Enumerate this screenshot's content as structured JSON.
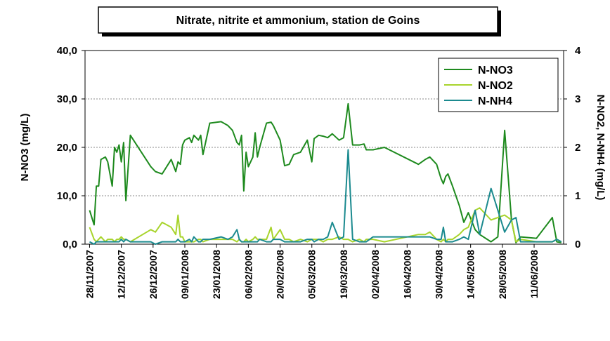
{
  "chart_data": {
    "type": "line",
    "title": "Nitrate, nitrite et ammonium, station de Goins",
    "ylabel": "N-NO3 (mg/L)",
    "y2label": "N-NO2, N-NH4 (mg/L)",
    "x": [
      "2007-11-28",
      "2007-11-30",
      "2007-12-01",
      "2007-12-02",
      "2007-12-03",
      "2007-12-05",
      "2007-12-06",
      "2007-12-08",
      "2007-12-09",
      "2007-12-10",
      "2007-12-11",
      "2007-12-12",
      "2007-12-13",
      "2007-12-14",
      "2007-12-16",
      "2007-12-25",
      "2007-12-27",
      "2007-12-30",
      "2008-01-03",
      "2008-01-05",
      "2008-01-06",
      "2008-01-07",
      "2008-01-08",
      "2008-01-09",
      "2008-01-11",
      "2008-01-12",
      "2008-01-13",
      "2008-01-15",
      "2008-01-16",
      "2008-01-17",
      "2008-01-20",
      "2008-01-25",
      "2008-01-28",
      "2008-01-30",
      "2008-02-01",
      "2008-02-02",
      "2008-02-03",
      "2008-02-04",
      "2008-02-05",
      "2008-02-06",
      "2008-02-08",
      "2008-02-09",
      "2008-02-10",
      "2008-02-11",
      "2008-02-14",
      "2008-02-16",
      "2008-02-17",
      "2008-02-20",
      "2008-02-22",
      "2008-02-24",
      "2008-02-26",
      "2008-02-29",
      "2008-03-03",
      "2008-03-05",
      "2008-03-06",
      "2008-03-08",
      "2008-03-10",
      "2008-03-12",
      "2008-03-14",
      "2008-03-17",
      "2008-03-19",
      "2008-03-21",
      "2008-03-23",
      "2008-03-26",
      "2008-03-28",
      "2008-03-29",
      "2008-04-01",
      "2008-04-06",
      "2008-04-21",
      "2008-04-24",
      "2008-04-26",
      "2008-04-29",
      "2008-05-01",
      "2008-05-02",
      "2008-05-03",
      "2008-05-04",
      "2008-05-06",
      "2008-05-09",
      "2008-05-11",
      "2008-05-13",
      "2008-05-16",
      "2008-05-18",
      "2008-05-23",
      "2008-05-26",
      "2008-05-29",
      "2008-06-01",
      "2008-06-03",
      "2008-06-05",
      "2008-06-12",
      "2008-06-19",
      "2008-06-21",
      "2008-06-23"
    ],
    "series": [
      {
        "name": "N-NO3",
        "color": "#1e8a1e",
        "values": [
          7,
          4,
          12,
          12,
          17.5,
          18,
          17,
          12,
          20,
          19,
          20.5,
          17,
          21,
          9,
          22.5,
          16,
          15,
          14.5,
          17.5,
          15,
          17,
          16.5,
          20.5,
          21.5,
          22,
          21,
          22.5,
          21.5,
          22.5,
          18.5,
          25,
          25.3,
          24.5,
          23.5,
          21,
          20.5,
          22.5,
          11,
          19,
          16,
          18,
          23,
          18,
          20,
          25,
          25.2,
          24.5,
          21.5,
          16.2,
          16.5,
          18.5,
          19,
          21.5,
          17,
          21.8,
          22.5,
          22.3,
          22,
          22.8,
          21.5,
          22,
          29,
          20.5,
          20.5,
          20.7,
          19.5,
          19.5,
          20,
          16.5,
          17.5,
          18,
          16.5,
          13.5,
          12.5,
          14,
          14.5,
          12,
          8,
          4.5,
          6.5,
          3,
          2,
          0.5,
          1.5,
          23.5,
          5,
          0.3,
          1.5,
          1.2,
          5.5,
          0.5,
          0.3
        ]
      },
      {
        "name": "N-NO2",
        "color": "#a8d42c",
        "axis": "y2",
        "values": [
          0.35,
          0.1,
          0.05,
          0.1,
          0.15,
          0.05,
          0.1,
          0.1,
          0.05,
          0.1,
          0.1,
          0.15,
          0.1,
          0.1,
          0.05,
          0.3,
          0.25,
          0.45,
          0.35,
          0.2,
          0.6,
          0.15,
          0.15,
          0.05,
          0.05,
          0.05,
          0.05,
          0.1,
          0.1,
          0.05,
          0.1,
          0.1,
          0.1,
          0.1,
          0.05,
          0.1,
          0.05,
          0.05,
          0.1,
          0.05,
          0.1,
          0.15,
          0.1,
          0.1,
          0.1,
          0.35,
          0.1,
          0.3,
          0.1,
          0.1,
          0.05,
          0.1,
          0.05,
          0.1,
          0.1,
          0.1,
          0.05,
          0.1,
          0.1,
          0.15,
          0.1,
          0.1,
          0.05,
          0.1,
          0.05,
          0.1,
          0.1,
          0.05,
          0.2,
          0.2,
          0.25,
          0.1,
          0.05,
          0.1,
          0.05,
          0.1,
          0.1,
          0.2,
          0.3,
          0.35,
          0.7,
          0.75,
          0.5,
          0.55,
          0.6,
          0.5,
          0.05,
          0.1,
          0.05,
          0.05,
          0.1,
          0.05
        ]
      },
      {
        "name": "N-NH4",
        "color": "#1b8a8f",
        "axis": "y2",
        "values": [
          0.05,
          0,
          0.05,
          0.05,
          0.05,
          0.05,
          0.05,
          0.05,
          0.05,
          0.05,
          0.05,
          0.1,
          0.05,
          0.1,
          0.05,
          0.05,
          0,
          0.05,
          0.05,
          0.05,
          0.1,
          0.05,
          0.05,
          0.05,
          0.1,
          0.05,
          0.15,
          0.05,
          0.05,
          0.1,
          0.1,
          0.15,
          0.1,
          0.15,
          0.3,
          0.1,
          0.05,
          0.05,
          0.05,
          0.05,
          0.05,
          0.05,
          0.05,
          0.1,
          0.05,
          0.05,
          0.1,
          0.1,
          0.05,
          0.05,
          0.05,
          0.05,
          0.1,
          0.1,
          0.05,
          0.1,
          0.1,
          0.15,
          0.45,
          0.1,
          0.15,
          1.95,
          0.1,
          0.05,
          0.05,
          0.05,
          0.15,
          0.15,
          0.15,
          0.15,
          0.15,
          0.1,
          0.1,
          0.35,
          0.05,
          0.05,
          0.05,
          0.1,
          0.15,
          0.1,
          0.7,
          0.2,
          1.15,
          0.7,
          0.25,
          0.5,
          0.55,
          0.05,
          0.05,
          0.05,
          0.1,
          0.05
        ]
      }
    ],
    "xlim": [
      "2007-11-26",
      "2008-06-24"
    ],
    "xticks": [
      {
        "value": "2007-11-28",
        "label": "28/11/2007"
      },
      {
        "value": "2007-12-12",
        "label": "12/12/2007"
      },
      {
        "value": "2007-12-26",
        "label": "26/12/2007"
      },
      {
        "value": "2008-01-09",
        "label": "09/01/2008"
      },
      {
        "value": "2008-01-23",
        "label": "23/01/2008"
      },
      {
        "value": "2008-02-06",
        "label": "06/02/2008"
      },
      {
        "value": "2008-02-20",
        "label": "20/02/2008"
      },
      {
        "value": "2008-03-05",
        "label": "05/03/2008"
      },
      {
        "value": "2008-03-19",
        "label": "19/03/2008"
      },
      {
        "value": "2008-04-02",
        "label": "02/04/2008"
      },
      {
        "value": "2008-04-16",
        "label": "16/04/2008"
      },
      {
        "value": "2008-04-30",
        "label": "30/04/2008"
      },
      {
        "value": "2008-05-14",
        "label": "14/05/2008"
      },
      {
        "value": "2008-05-28",
        "label": "28/05/2008"
      },
      {
        "value": "2008-06-11",
        "label": "11/06/2008"
      }
    ],
    "ylim": [
      0,
      40
    ],
    "yticks": [
      {
        "value": 0,
        "label": "0,0"
      },
      {
        "value": 10,
        "label": "10,0"
      },
      {
        "value": 20,
        "label": "20,0"
      },
      {
        "value": 30,
        "label": "30,0"
      },
      {
        "value": 40,
        "label": "40,0"
      }
    ],
    "y2lim": [
      0,
      4
    ],
    "y2ticks": [
      0,
      1,
      2,
      3,
      4
    ],
    "grid": true,
    "legend": "upper right"
  }
}
